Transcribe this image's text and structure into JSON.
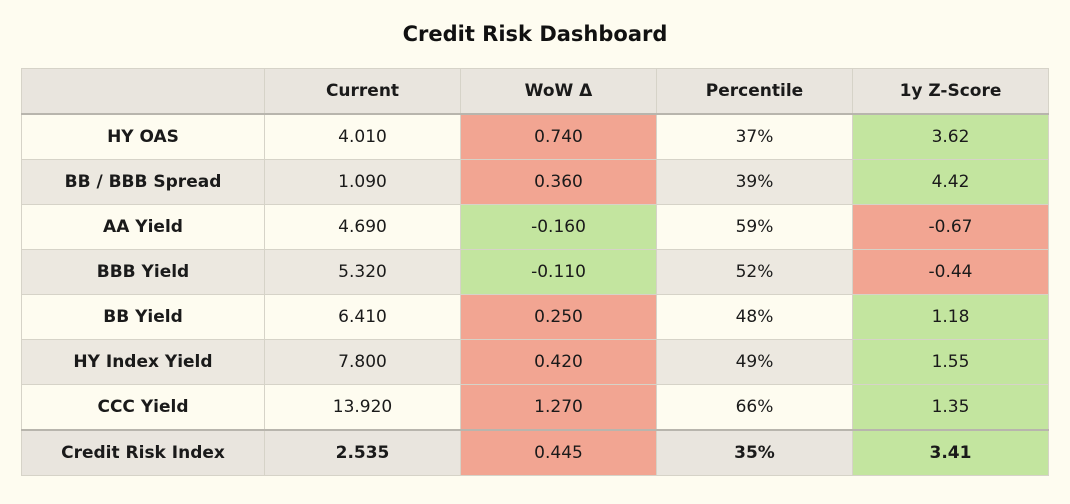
{
  "chart_data": {
    "type": "table",
    "title": "Credit Risk Dashboard",
    "columns": [
      "",
      "Current",
      "WoW Δ",
      "Percentile",
      "1y Z-Score"
    ],
    "rows": [
      {
        "label": "HY OAS",
        "current": "4.010",
        "wow": "0.740",
        "percentile": "37%",
        "zscore": "3.62",
        "wow_color": "red",
        "z_color": "green"
      },
      {
        "label": "BB / BBB Spread",
        "current": "1.090",
        "wow": "0.360",
        "percentile": "39%",
        "zscore": "4.42",
        "wow_color": "red",
        "z_color": "green"
      },
      {
        "label": "AA Yield",
        "current": "4.690",
        "wow": "-0.160",
        "percentile": "59%",
        "zscore": "-0.67",
        "wow_color": "green",
        "z_color": "red"
      },
      {
        "label": "BBB Yield",
        "current": "5.320",
        "wow": "-0.110",
        "percentile": "52%",
        "zscore": "-0.44",
        "wow_color": "green",
        "z_color": "red"
      },
      {
        "label": "BB Yield",
        "current": "6.410",
        "wow": "0.250",
        "percentile": "48%",
        "zscore": "1.18",
        "wow_color": "red",
        "z_color": "green"
      },
      {
        "label": "HY Index Yield",
        "current": "7.800",
        "wow": "0.420",
        "percentile": "49%",
        "zscore": "1.55",
        "wow_color": "red",
        "z_color": "green"
      },
      {
        "label": "CCC Yield",
        "current": "13.920",
        "wow": "1.270",
        "percentile": "66%",
        "zscore": "1.35",
        "wow_color": "red",
        "z_color": "green"
      }
    ],
    "summary": {
      "label": "Credit Risk Index",
      "current": "2.535",
      "wow": "0.445",
      "percentile": "35%",
      "zscore": "3.41",
      "wow_color": "red",
      "z_color": "green"
    },
    "colors": {
      "red": "#f2a592",
      "green": "#c3e59f"
    }
  }
}
